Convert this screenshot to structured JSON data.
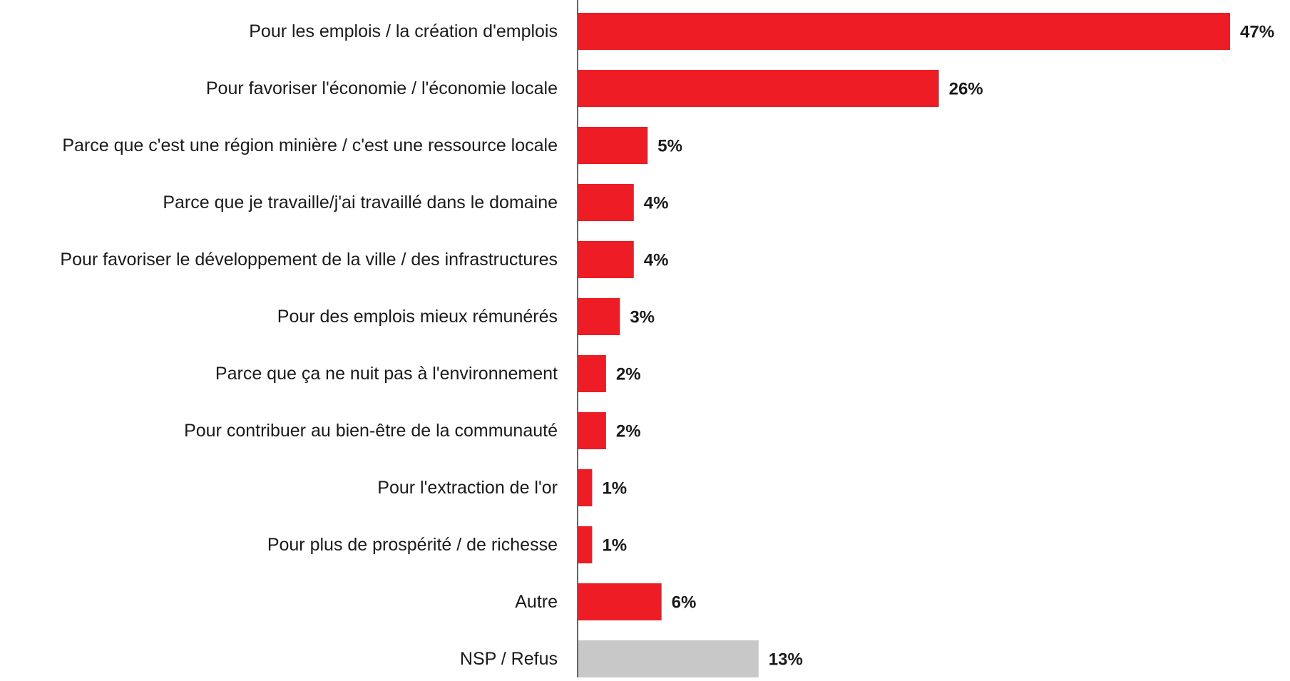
{
  "chart_data": {
    "type": "bar",
    "orientation": "horizontal",
    "title": "",
    "xlabel": "",
    "ylabel": "",
    "xlim": [
      0,
      47
    ],
    "grid": false,
    "legend": "none",
    "categories": [
      "Pour les emplois / la création d'emplois",
      "Pour favoriser l'économie / l'économie locale",
      "Parce que c'est une région minière / c'est une ressource locale",
      "Parce que je travaille/j'ai travaillé dans le domaine",
      "Pour favoriser le développement de la ville / des infrastructures",
      "Pour des emplois mieux rémunérés",
      "Parce que ça ne nuit pas à l'environnement",
      "Pour contribuer au bien-être de la communauté",
      "Pour l'extraction de l'or",
      "Pour plus de prospérité / de richesse",
      "Autre",
      "NSP / Refus"
    ],
    "values": [
      47,
      26,
      5,
      4,
      4,
      3,
      2,
      2,
      1,
      1,
      6,
      13
    ],
    "value_labels": [
      "47%",
      "26%",
      "5%",
      "4%",
      "4%",
      "3%",
      "2%",
      "2%",
      "1%",
      "1%",
      "6%",
      "13%"
    ],
    "colors": {
      "main": "#ee1c25",
      "nsp": "#c8c8c8",
      "axis": "#333333"
    },
    "bar_color_keys": [
      "main",
      "main",
      "main",
      "main",
      "main",
      "main",
      "main",
      "main",
      "main",
      "main",
      "main",
      "nsp"
    ]
  }
}
